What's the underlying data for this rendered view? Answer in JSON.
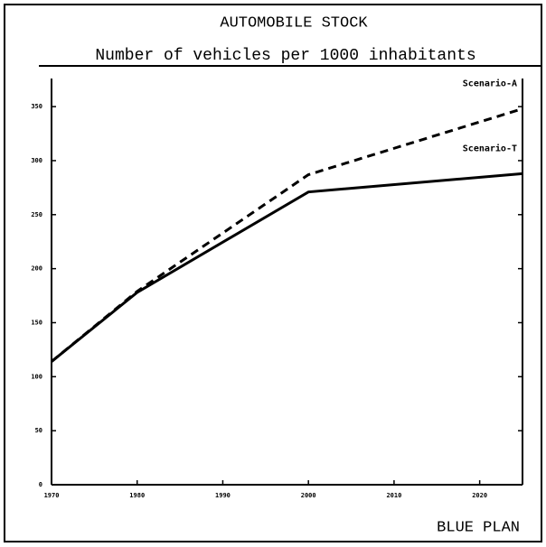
{
  "chart_data": {
    "type": "line",
    "title": "AUTOMOBILE STOCK",
    "subtitle": "Number of vehicles per 1000 inhabitants",
    "footer": "BLUE PLAN",
    "x": [
      1970,
      1980,
      2000,
      2025
    ],
    "series": [
      {
        "name": "Scenario-A",
        "color": "#000000",
        "line_style": "dashed",
        "values": [
          114,
          179,
          287,
          348
        ]
      },
      {
        "name": "Scenario-T",
        "color": "#000000",
        "line_style": "solid",
        "values": [
          114,
          178,
          271,
          288
        ]
      }
    ],
    "xlim": [
      1970,
      2025
    ],
    "xticks": [
      1970,
      1980,
      1990,
      2000,
      2010,
      2020
    ],
    "ylim": [
      0,
      376
    ],
    "yticks": [
      0,
      50,
      100,
      150,
      200,
      250,
      300,
      350
    ],
    "grid": false
  }
}
